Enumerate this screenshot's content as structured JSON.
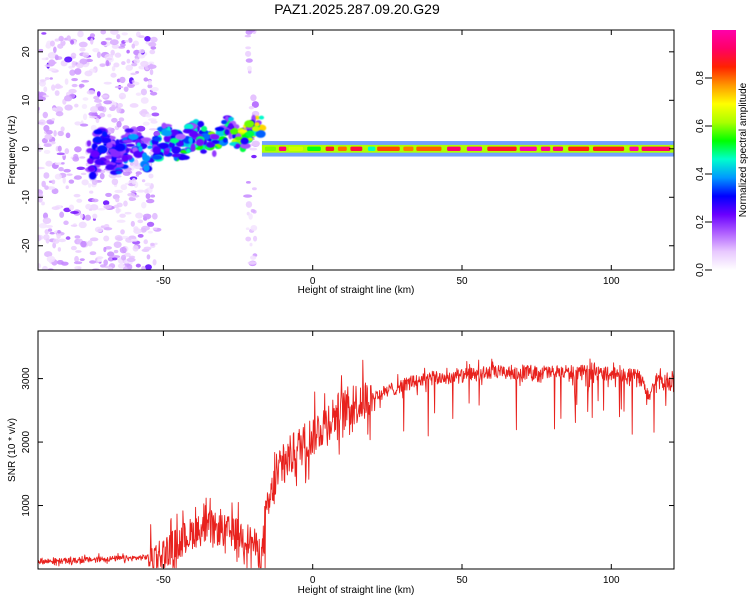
{
  "figure": {
    "title": "PAZ1.2025.287.09.20.G29"
  },
  "colors": {
    "snr_line": "#e8211d",
    "axis": "#000000",
    "background": "#ffffff",
    "colormap": [
      "#ffffff",
      "#e8c8ff",
      "#b060ff",
      "#6a00ff",
      "#0000ff",
      "#0099ff",
      "#00ffcc",
      "#00ff00",
      "#aaff00",
      "#ffff00",
      "#ff9900",
      "#ff2200",
      "#ff0066",
      "#ff00aa"
    ]
  },
  "chart_data": [
    {
      "type": "heatmap",
      "title": "",
      "xlabel": "Height of straight line (km)",
      "ylabel": "Frequency (Hz)",
      "xlim": [
        -92,
        121
      ],
      "ylim": [
        -25,
        24.5
      ],
      "x_ticks": [
        -50,
        0,
        50,
        100
      ],
      "y_ticks": [
        -20,
        -10,
        0,
        10,
        20
      ],
      "colorbar": {
        "label": "Normalized spectral amplitude",
        "range": [
          0,
          1
        ],
        "ticks": [
          "0.0",
          "0.2",
          "0.4",
          "0.6",
          "0.8"
        ],
        "tick_values": [
          0,
          0.2,
          0.4,
          0.6,
          0.8
        ]
      },
      "features": [
        {
          "name": "noise",
          "x_range": [
            -92,
            -52
          ],
          "freq_range": [
            -25,
            24.5
          ],
          "amplitude": 0.1
        },
        {
          "name": "noise-stripe",
          "x_range": [
            -22,
            -19
          ],
          "freq_range": [
            -25,
            24.5
          ],
          "amplitude": 0.1
        },
        {
          "name": "carrier-onset",
          "x_range": [
            -75,
            -17
          ],
          "center_freq": [
            -1.5,
            4
          ],
          "amplitude": 0.35
        },
        {
          "name": "carrier",
          "x_range": [
            -17,
            121
          ],
          "center_freq": 0,
          "amplitude": 0.95
        }
      ]
    },
    {
      "type": "line",
      "title": "",
      "xlabel": "Height of straight line (km)",
      "ylabel": "SNR (10 * v/v)",
      "xlim": [
        -92,
        121
      ],
      "ylim": [
        0,
        3750
      ],
      "x_ticks": [
        -50,
        0,
        50,
        100
      ],
      "y_ticks": [
        1000,
        2000,
        3000
      ],
      "series": [
        {
          "name": "SNR",
          "x": [
            -92,
            -80,
            -70,
            -60,
            -55,
            -50,
            -45,
            -40,
            -35,
            -30,
            -25,
            -20,
            -17,
            -15,
            -13,
            -10,
            -5,
            0,
            5,
            10,
            15,
            20,
            25,
            30,
            35,
            40,
            50,
            55,
            60,
            65,
            70,
            80,
            90,
            100,
            105,
            110,
            112,
            115,
            121
          ],
          "y": [
            120,
            130,
            160,
            170,
            190,
            250,
            420,
            580,
            650,
            600,
            560,
            420,
            200,
            950,
            1300,
            1650,
            1900,
            2100,
            2350,
            2500,
            2620,
            2700,
            2800,
            2900,
            2960,
            3000,
            3040,
            3070,
            3100,
            3100,
            3100,
            3100,
            3100,
            3080,
            3060,
            3020,
            2700,
            2950,
            2900
          ]
        }
      ]
    }
  ]
}
